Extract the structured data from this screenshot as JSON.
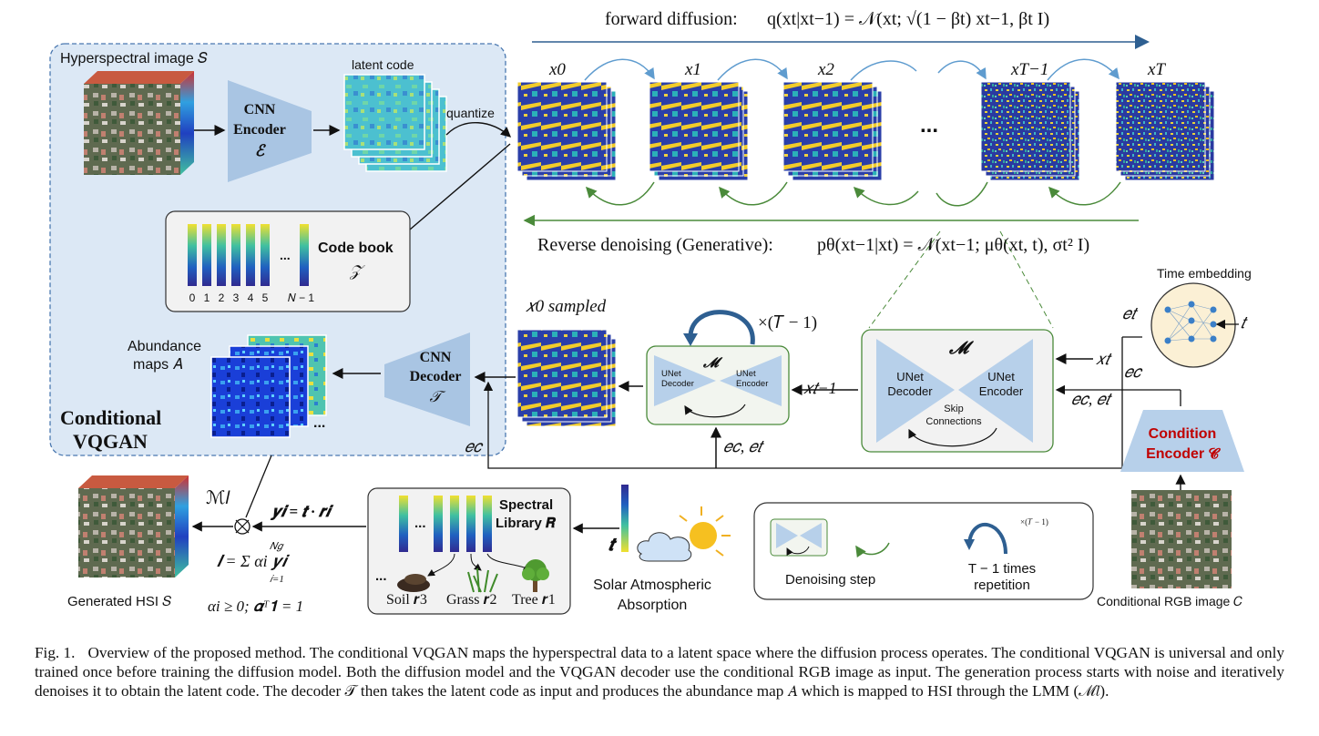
{
  "forward": {
    "label": "forward diffusion:",
    "formula": "q(xt|xt−1) = 𝒩(xt; √(1 − βt) xt−1, βt I)"
  },
  "reverse": {
    "label": "Reverse denoising (Generative):",
    "formula": "pθ(xt−1|xt) = 𝒩(xt−1; μθ(xt, t), σt² I)"
  },
  "states": [
    "x0",
    "x1",
    "x2",
    "xT−1",
    "xT"
  ],
  "ellipsis": "...",
  "vqgan": {
    "title_line1": "Conditional",
    "title_line2": "VQGAN",
    "hsi_label": "Hyperspectral image 𝑆",
    "encoder": [
      "CNN",
      "Encoder",
      "ℰ"
    ],
    "latent_label": "latent code",
    "quantize_label": "quantize",
    "codebook_label": "Code book",
    "codebook_symbol": "𝒵",
    "codebook_ticks": [
      "0",
      "1",
      "2",
      "3",
      "4",
      "5",
      "𝑁 − 1"
    ],
    "abundance_label1": "Abundance",
    "abundance_label2": "maps 𝐴",
    "decoder": [
      "CNN",
      "Decoder",
      "𝒯"
    ]
  },
  "sampled_label": "𝑥0 sampled",
  "small_unet": {
    "symbol": "𝓜",
    "left": "UNet\nDecoder",
    "right": "UNet\nEncoder",
    "repeat": "×(𝑇 − 1)"
  },
  "big_unet": {
    "symbol": "𝓜",
    "left": "UNet Decoder",
    "right": "UNet Encoder",
    "skip": "Skip Connections"
  },
  "signals": {
    "x_t_minus_1": "𝑥𝑡−1",
    "x_t": "𝑥𝑡",
    "ec_et": "𝑒𝑐, 𝑒𝑡",
    "ec_et_2": "𝑒𝑐, 𝑒𝑡",
    "et": "𝑒𝑡",
    "ec": "𝑒𝑐",
    "ec_left": "𝑒𝑐",
    "t": "𝑡"
  },
  "time_embedding": "Time embedding",
  "condition_encoder": {
    "line1": "Condition",
    "line2": "Encoder 𝓒"
  },
  "cond_rgb_label": "Conditional RGB image 𝐶",
  "lmm": {
    "ml": "ℳ𝑙",
    "yi": "𝒚𝒊 = 𝒕 · 𝒓𝒊",
    "l_eq": "𝒍 = Σ αi 𝒚𝒊",
    "sum_upper": "𝑁𝑔",
    "sum_lower": "𝑖=1",
    "constraint": "αi ≥ 0; 𝜶ᵀ𝟏 = 1",
    "generated": "Generated HSI 𝑆"
  },
  "spectral_library": {
    "title1": "Spectral",
    "title2": "Library 𝑹",
    "ellipsis": "...",
    "soil": "Soil 𝒓3",
    "grass": "Grass 𝒓2",
    "tree": "Tree 𝒓1",
    "dots": "..."
  },
  "t_symbol": "𝒕",
  "solar": {
    "line1": "Solar Atmospheric",
    "line2": "Absorption"
  },
  "legend": {
    "denoising": "Denoising step",
    "repeat_line1": "T − 1 times",
    "repeat_line2": "repetition",
    "repeat_small": "×(𝑇 − 1)"
  },
  "caption": {
    "fig": "Fig. 1.",
    "text": "Overview of the proposed method. The conditional VQGAN maps the hyperspectral data to a latent space where the diffusion process operates. The conditional VQGAN is universal and only trained once before training the diffusion model. Both the diffusion model and the VQGAN decoder use the conditional RGB image as input. The generation process starts with noise and iteratively denoises it to obtain the latent code. The decoder 𝒯 then takes the latent code as input and produces the abundance map 𝐴 which is mapped to HSI through the LMM (ℳ𝑙)."
  },
  "colors": {
    "vqgan_bg": "#dce8f5",
    "arrow_blue": "#2e5f91",
    "arrow_green": "#4a8a3a",
    "cnn_fill": "#a9c5e3",
    "unet_fill": "#b7d0ea",
    "cond_red": "#c00000",
    "panel_gray": "#f2f2f2"
  }
}
